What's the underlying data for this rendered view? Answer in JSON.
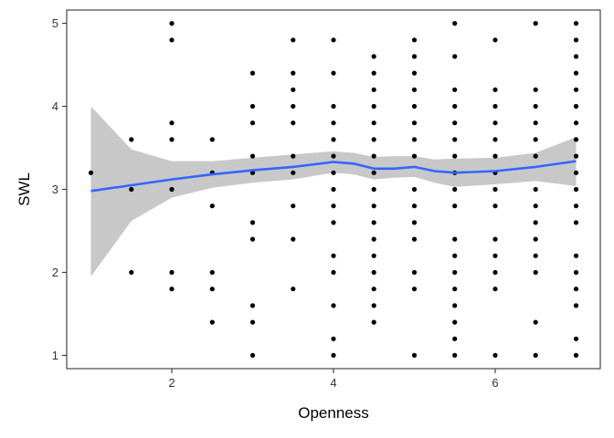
{
  "chart_data": {
    "type": "scatter",
    "xlabel": "Openness",
    "ylabel": "SWL",
    "xlim": [
      0.7,
      7.3
    ],
    "ylim": [
      0.84,
      5.16
    ],
    "x_ticks": [
      2,
      4,
      6
    ],
    "y_ticks": [
      1,
      2,
      3,
      4,
      5
    ],
    "grid": false,
    "legend": "none",
    "colors": {
      "points": "#000000",
      "smooth_line": "#3366ff",
      "confidence_band": "#c8c8c8",
      "axis": "#333333"
    },
    "points": [
      [
        1,
        3.2
      ],
      [
        1.5,
        3.6
      ],
      [
        1.5,
        3.0
      ],
      [
        1.5,
        2.0
      ],
      [
        2,
        5.0
      ],
      [
        2,
        4.8
      ],
      [
        2,
        3.8
      ],
      [
        2,
        3.6
      ],
      [
        2,
        3.0
      ],
      [
        2,
        2.0
      ],
      [
        2,
        1.8
      ],
      [
        2.5,
        3.6
      ],
      [
        2.5,
        3.2
      ],
      [
        2.5,
        2.8
      ],
      [
        2.5,
        2.0
      ],
      [
        2.5,
        1.8
      ],
      [
        2.5,
        1.4
      ],
      [
        3,
        4.4
      ],
      [
        3,
        4.0
      ],
      [
        3,
        3.8
      ],
      [
        3,
        3.4
      ],
      [
        3,
        3.2
      ],
      [
        3,
        2.6
      ],
      [
        3,
        2.4
      ],
      [
        3,
        1.6
      ],
      [
        3,
        1.4
      ],
      [
        3,
        1.0
      ],
      [
        3.5,
        4.8
      ],
      [
        3.5,
        4.4
      ],
      [
        3.5,
        4.2
      ],
      [
        3.5,
        4.0
      ],
      [
        3.5,
        3.8
      ],
      [
        3.5,
        3.4
      ],
      [
        3.5,
        3.2
      ],
      [
        3.5,
        2.8
      ],
      [
        3.5,
        2.4
      ],
      [
        3.5,
        1.8
      ],
      [
        4,
        4.8
      ],
      [
        4,
        4.4
      ],
      [
        4,
        4.0
      ],
      [
        4,
        3.8
      ],
      [
        4,
        3.6
      ],
      [
        4,
        3.4
      ],
      [
        4,
        3.2
      ],
      [
        4,
        3.0
      ],
      [
        4,
        2.8
      ],
      [
        4,
        2.6
      ],
      [
        4,
        2.2
      ],
      [
        4,
        2.0
      ],
      [
        4,
        1.6
      ],
      [
        4,
        1.2
      ],
      [
        4,
        1.0
      ],
      [
        4.5,
        4.6
      ],
      [
        4.5,
        4.4
      ],
      [
        4.5,
        4.2
      ],
      [
        4.5,
        4.0
      ],
      [
        4.5,
        3.8
      ],
      [
        4.5,
        3.6
      ],
      [
        4.5,
        3.4
      ],
      [
        4.5,
        3.2
      ],
      [
        4.5,
        3.0
      ],
      [
        4.5,
        2.8
      ],
      [
        4.5,
        2.6
      ],
      [
        4.5,
        2.4
      ],
      [
        4.5,
        2.2
      ],
      [
        4.5,
        2.0
      ],
      [
        4.5,
        1.8
      ],
      [
        4.5,
        1.6
      ],
      [
        4.5,
        1.4
      ],
      [
        5,
        4.8
      ],
      [
        5,
        4.6
      ],
      [
        5,
        4.4
      ],
      [
        5,
        4.2
      ],
      [
        5,
        4.0
      ],
      [
        5,
        3.8
      ],
      [
        5,
        3.6
      ],
      [
        5,
        3.4
      ],
      [
        5,
        3.0
      ],
      [
        5,
        2.8
      ],
      [
        5,
        2.6
      ],
      [
        5,
        2.4
      ],
      [
        5,
        2.0
      ],
      [
        5,
        1.8
      ],
      [
        5,
        1.0
      ],
      [
        5.5,
        5.0
      ],
      [
        5.5,
        4.6
      ],
      [
        5.5,
        4.2
      ],
      [
        5.5,
        4.0
      ],
      [
        5.5,
        3.8
      ],
      [
        5.5,
        3.6
      ],
      [
        5.5,
        3.4
      ],
      [
        5.5,
        3.2
      ],
      [
        5.5,
        3.0
      ],
      [
        5.5,
        2.8
      ],
      [
        5.5,
        2.4
      ],
      [
        5.5,
        2.2
      ],
      [
        5.5,
        2.0
      ],
      [
        5.5,
        1.8
      ],
      [
        5.5,
        1.6
      ],
      [
        5.5,
        1.4
      ],
      [
        5.5,
        1.2
      ],
      [
        5.5,
        1.0
      ],
      [
        6,
        4.8
      ],
      [
        6,
        4.2
      ],
      [
        6,
        4.0
      ],
      [
        6,
        3.8
      ],
      [
        6,
        3.6
      ],
      [
        6,
        3.4
      ],
      [
        6,
        3.2
      ],
      [
        6,
        3.0
      ],
      [
        6,
        2.8
      ],
      [
        6,
        2.4
      ],
      [
        6,
        2.2
      ],
      [
        6,
        2.0
      ],
      [
        6,
        1.8
      ],
      [
        6,
        1.0
      ],
      [
        6.5,
        5.0
      ],
      [
        6.5,
        4.2
      ],
      [
        6.5,
        4.0
      ],
      [
        6.5,
        3.8
      ],
      [
        6.5,
        3.6
      ],
      [
        6.5,
        3.4
      ],
      [
        6.5,
        3.0
      ],
      [
        6.5,
        2.8
      ],
      [
        6.5,
        2.6
      ],
      [
        6.5,
        2.4
      ],
      [
        6.5,
        2.2
      ],
      [
        6.5,
        2.0
      ],
      [
        6.5,
        1.4
      ],
      [
        6.5,
        1.0
      ],
      [
        7,
        5.0
      ],
      [
        7,
        4.8
      ],
      [
        7,
        4.6
      ],
      [
        7,
        4.4
      ],
      [
        7,
        4.2
      ],
      [
        7,
        4.0
      ],
      [
        7,
        3.8
      ],
      [
        7,
        3.6
      ],
      [
        7,
        3.4
      ],
      [
        7,
        3.2
      ],
      [
        7,
        3.0
      ],
      [
        7,
        2.8
      ],
      [
        7,
        2.6
      ],
      [
        7,
        2.2
      ],
      [
        7,
        2.0
      ],
      [
        7,
        1.8
      ],
      [
        7,
        1.6
      ],
      [
        7,
        1.2
      ],
      [
        7,
        1.0
      ]
    ],
    "smooth": {
      "x": [
        1.0,
        1.5,
        2.0,
        2.5,
        3.0,
        3.5,
        4.0,
        4.25,
        4.5,
        4.75,
        5.0,
        5.25,
        5.5,
        6.0,
        6.5,
        7.0
      ],
      "y": [
        2.98,
        3.05,
        3.12,
        3.18,
        3.23,
        3.27,
        3.33,
        3.31,
        3.25,
        3.25,
        3.27,
        3.22,
        3.2,
        3.22,
        3.27,
        3.34
      ],
      "lower": [
        1.95,
        2.62,
        2.9,
        3.02,
        3.08,
        3.12,
        3.2,
        3.18,
        3.12,
        3.14,
        3.15,
        3.08,
        3.03,
        3.06,
        3.1,
        3.04
      ],
      "upper": [
        4.0,
        3.48,
        3.34,
        3.34,
        3.38,
        3.42,
        3.46,
        3.44,
        3.39,
        3.4,
        3.4,
        3.36,
        3.37,
        3.38,
        3.44,
        3.63
      ]
    }
  }
}
